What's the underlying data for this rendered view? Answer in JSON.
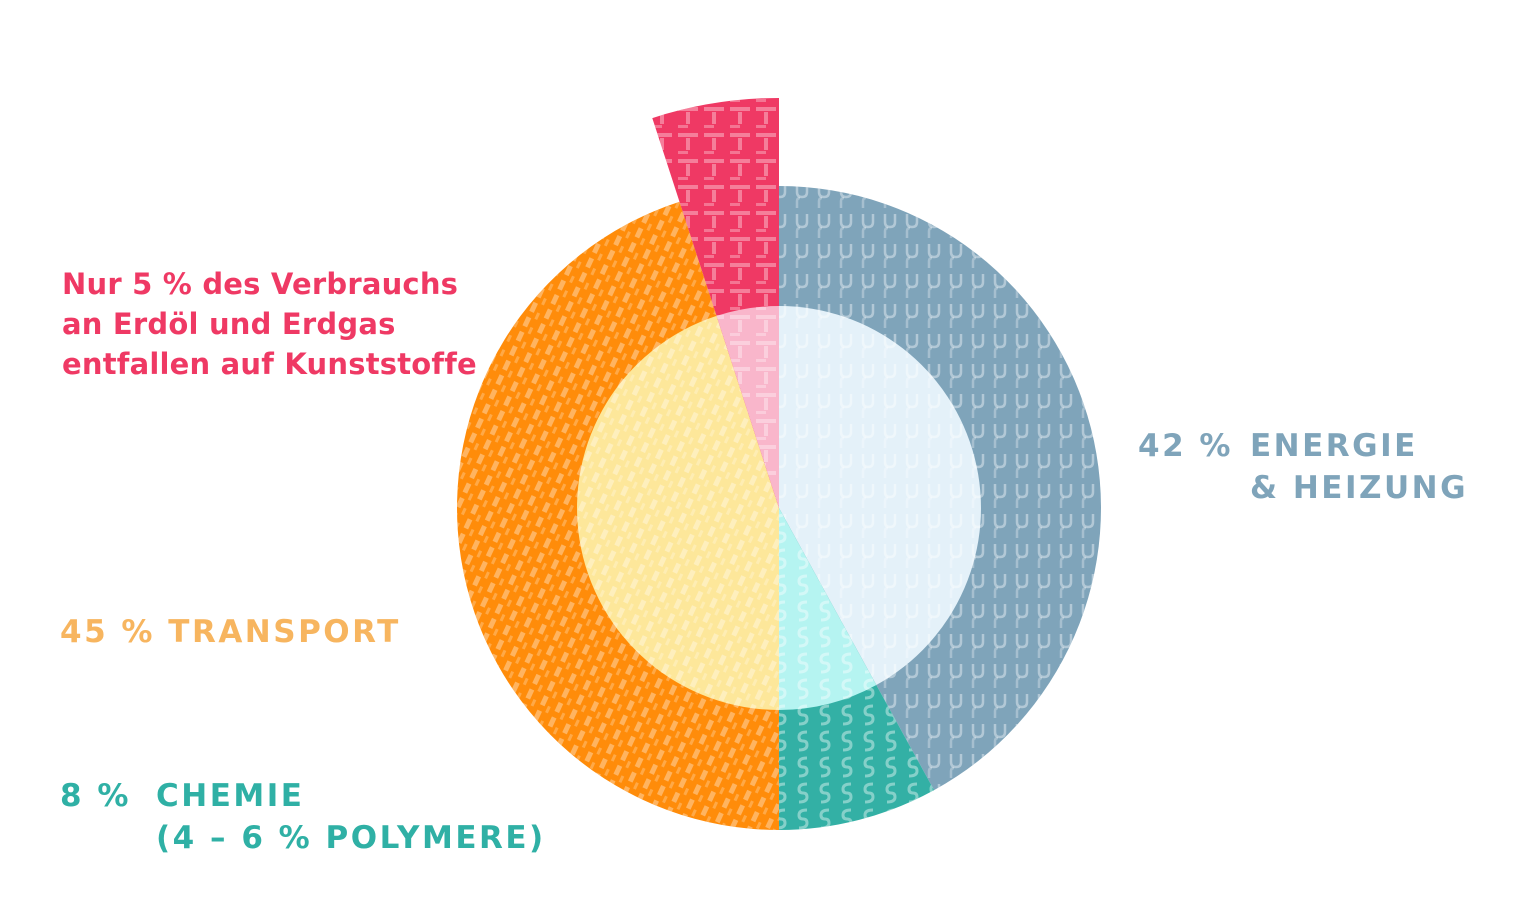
{
  "colors": {
    "energie": "#7fa4ba",
    "energie_inner": "#e4f1f9",
    "transport": "#ff8c0a",
    "transport_inner": "#fde79a",
    "chemie": "#33b0a5",
    "chemie_inner": "#b5f4f1",
    "kunststoff": "#ef3964",
    "kunststoff_inner": "#f9b6cb",
    "leader_dark": "#234f7c",
    "label_energie": "#7fa4ba",
    "label_transport": "#f7b55f",
    "label_chemie": "#2fb0a5",
    "label_kunststoff": "#ef3964"
  },
  "chart_data": {
    "type": "pie",
    "unit": "%",
    "segments": [
      {
        "key": "energie",
        "value": 42,
        "pct_label": "42 %",
        "label_lines": [
          "ENERGIE",
          "& HEIZUNG"
        ]
      },
      {
        "key": "chemie",
        "value": 8,
        "pct_label": "8 %",
        "label_lines": [
          "CHEMIE",
          "(4 – 6 % POLYMERE)"
        ]
      },
      {
        "key": "transport",
        "value": 45,
        "pct_label": "45 %",
        "label_text": "TRANSPORT"
      },
      {
        "key": "kunststoff",
        "value": 5,
        "exploded": true,
        "label_lines": [
          "Nur 5 % des Verbrauchs",
          "an Erdöl und Erdgas",
          "entfallen auf Kunststoffe"
        ]
      }
    ],
    "start": "12 o'clock",
    "direction": "clockwise",
    "legend": "none",
    "grid": false
  }
}
